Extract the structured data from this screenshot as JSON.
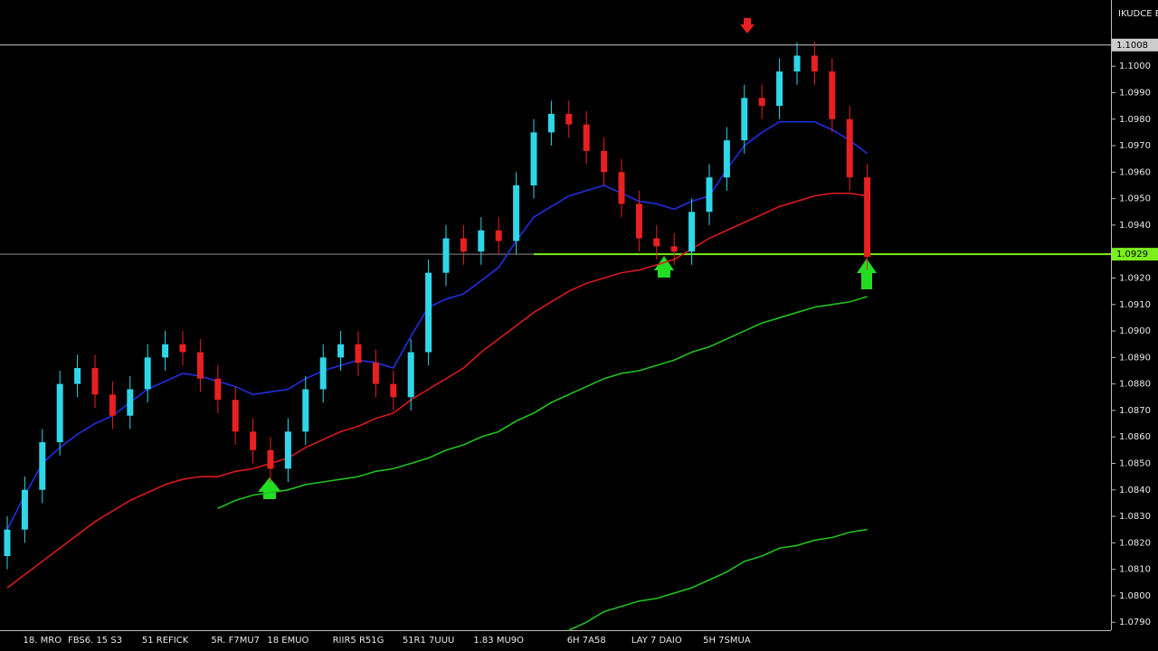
{
  "chart_data": {
    "type": "candlestick",
    "symbol": "IKUDCE E",
    "categories": [
      null,
      null,
      "18. MRO",
      null,
      null,
      "FBS6. 15 S3",
      null,
      null,
      null,
      "51 REFICK",
      null,
      null,
      null,
      "5R. F7MU7",
      null,
      null,
      "18 EMUO",
      null,
      null,
      null,
      "RIIR5 R51G",
      null,
      null,
      null,
      "51R1 7UUU",
      null,
      null,
      null,
      "1.83 MU9O",
      null,
      null,
      null,
      null,
      "6H 7A58",
      null,
      null,
      null,
      "LAY 7 DAIO",
      null,
      null,
      null,
      "5H 7SMUA",
      null,
      null,
      null,
      null,
      null,
      null,
      null,
      null
    ],
    "open": [
      1.0815,
      1.0825,
      1.084,
      1.0858,
      1.088,
      1.0886,
      1.0876,
      1.0868,
      1.0878,
      1.089,
      1.0895,
      1.0892,
      1.0882,
      1.0874,
      1.0862,
      1.0855,
      1.0848,
      1.0862,
      1.0878,
      1.089,
      1.0895,
      1.0888,
      1.088,
      1.0875,
      1.0892,
      1.0922,
      1.0935,
      1.093,
      1.0938,
      1.0934,
      1.0955,
      1.0975,
      1.0982,
      1.0978,
      1.0968,
      1.096,
      1.0948,
      1.0935,
      1.0932,
      1.093,
      1.0945,
      1.0958,
      1.0972,
      1.0988,
      1.0985,
      1.0998,
      1.1004,
      1.0998,
      1.098,
      1.0958
    ],
    "high": [
      1.083,
      1.0845,
      1.0863,
      1.0885,
      1.0891,
      1.0891,
      1.0881,
      1.0883,
      1.0895,
      1.09,
      1.09,
      1.0897,
      1.0887,
      1.0879,
      1.0867,
      1.086,
      1.0867,
      1.0883,
      1.0895,
      1.09,
      1.09,
      1.0893,
      1.0885,
      1.0897,
      1.0927,
      1.094,
      1.094,
      1.0943,
      1.0943,
      1.096,
      1.098,
      1.0987,
      1.0987,
      1.0983,
      1.0973,
      1.0965,
      1.0953,
      1.094,
      1.0937,
      1.095,
      1.0963,
      1.0977,
      1.0993,
      1.0993,
      1.1003,
      1.1009,
      1.1009,
      1.1003,
      1.0985,
      1.0963
    ],
    "low": [
      1.081,
      1.082,
      1.0835,
      1.0853,
      1.0875,
      1.0871,
      1.0863,
      1.0863,
      1.0873,
      1.0885,
      1.0887,
      1.0877,
      1.0869,
      1.0857,
      1.085,
      1.0843,
      1.0843,
      1.0857,
      1.0873,
      1.0885,
      1.0883,
      1.0875,
      1.087,
      1.087,
      1.0887,
      1.0917,
      1.0925,
      1.0925,
      1.0929,
      1.0929,
      1.095,
      1.097,
      1.0973,
      1.0963,
      1.0955,
      1.0943,
      1.093,
      1.0927,
      1.0925,
      1.0925,
      1.094,
      1.0953,
      1.0967,
      1.098,
      1.098,
      1.0993,
      1.0993,
      1.0975,
      1.0953,
      1.0923
    ],
    "close": [
      1.0825,
      1.084,
      1.0858,
      1.088,
      1.0886,
      1.0876,
      1.0868,
      1.0878,
      1.089,
      1.0895,
      1.0892,
      1.0882,
      1.0874,
      1.0862,
      1.0855,
      1.0848,
      1.0862,
      1.0878,
      1.089,
      1.0895,
      1.0888,
      1.088,
      1.0875,
      1.0892,
      1.0922,
      1.0935,
      1.093,
      1.0938,
      1.0934,
      1.0955,
      1.0975,
      1.0982,
      1.0978,
      1.0968,
      1.096,
      1.0948,
      1.0935,
      1.0932,
      1.093,
      1.0945,
      1.0958,
      1.0972,
      1.0988,
      1.0985,
      1.0998,
      1.1004,
      1.0998,
      1.098,
      1.0958,
      1.0928
    ],
    "up_color": "#2fd6e8",
    "down_color": "#e82020",
    "series": [
      {
        "color": "#1f2fe0",
        "values": [
          1.0825,
          1.0838,
          1.085,
          1.0856,
          1.0861,
          1.0865,
          1.0868,
          1.0873,
          1.0878,
          1.0881,
          1.0884,
          1.0883,
          1.0881,
          1.0879,
          1.0876,
          1.0877,
          1.0878,
          1.0882,
          1.0885,
          1.0887,
          1.0889,
          1.0888,
          1.0886,
          1.0898,
          1.0909,
          1.0912,
          1.0914,
          1.0919,
          1.0924,
          1.0934,
          1.0943,
          1.0947,
          1.0951,
          1.0953,
          1.0955,
          1.0952,
          1.0949,
          1.0948,
          1.0946,
          1.0949,
          1.0951,
          1.0961,
          1.097,
          1.0975,
          1.0979,
          1.0979,
          1.0979,
          1.0976,
          1.0972,
          1.0967
        ]
      },
      {
        "color": "#d81a1a",
        "values": [
          1.0803,
          1.0808,
          1.0813,
          1.0818,
          1.0823,
          1.0828,
          1.0832,
          1.0836,
          1.0839,
          1.0842,
          1.0844,
          1.0845,
          1.0845,
          1.0847,
          1.0848,
          1.085,
          1.0852,
          1.0856,
          1.0859,
          1.0862,
          1.0864,
          1.0867,
          1.0869,
          1.0874,
          1.0878,
          1.0882,
          1.0886,
          1.0892,
          1.0897,
          1.0902,
          1.0907,
          1.0911,
          1.0915,
          1.0918,
          1.092,
          1.0922,
          1.0923,
          1.0925,
          1.0927,
          1.0931,
          1.0935,
          1.0938,
          1.0941,
          1.0944,
          1.0947,
          1.0949,
          1.0951,
          1.0952,
          1.0952,
          1.0951
        ]
      },
      {
        "color": "#22c01e",
        "values": [
          null,
          null,
          null,
          null,
          null,
          null,
          null,
          null,
          null,
          null,
          null,
          null,
          1.0833,
          1.0836,
          1.0838,
          1.0839,
          1.084,
          1.0842,
          1.0843,
          1.0844,
          1.0845,
          1.0847,
          1.0848,
          1.085,
          1.0852,
          1.0855,
          1.0857,
          1.086,
          1.0862,
          1.0866,
          1.0869,
          1.0873,
          1.0876,
          1.0879,
          1.0882,
          1.0884,
          1.0885,
          1.0887,
          1.0889,
          1.0892,
          1.0894,
          1.0897,
          1.09,
          1.0903,
          1.0905,
          1.0907,
          1.0909,
          1.091,
          1.0911,
          1.0913
        ]
      },
      {
        "color": "#22c01e",
        "values": [
          null,
          null,
          null,
          null,
          null,
          null,
          null,
          null,
          null,
          null,
          null,
          null,
          null,
          null,
          null,
          null,
          null,
          null,
          null,
          null,
          null,
          null,
          null,
          null,
          null,
          null,
          null,
          null,
          null,
          null,
          null,
          null,
          1.0787,
          1.079,
          1.0794,
          1.0796,
          1.0798,
          1.0799,
          1.0801,
          1.0803,
          1.0806,
          1.0809,
          1.0813,
          1.0815,
          1.0818,
          1.0819,
          1.0821,
          1.0822,
          1.0824,
          1.0825
        ]
      }
    ],
    "levels": [
      {
        "value": 1.1008,
        "color": "#cccccc"
      },
      {
        "value": 1.0929,
        "color": "#8a8a8a"
      },
      {
        "value": 1.0929,
        "color": "#7cf01a"
      }
    ],
    "ylim": [
      1.0787,
      1.1025
    ],
    "yticks": [
      {
        "value": 1.1,
        "label": "1.1000"
      },
      {
        "value": 1.099,
        "label": "1.0990"
      },
      {
        "value": 1.098,
        "label": "1.0980"
      },
      {
        "value": 1.097,
        "label": "1.0970"
      },
      {
        "value": 1.096,
        "label": "1.0960"
      },
      {
        "value": 1.095,
        "label": "1.0950"
      },
      {
        "value": 1.094,
        "label": "1.0940"
      },
      {
        "value": 1.093,
        "label": "1.0930"
      },
      {
        "value": 1.092,
        "label": "1.0920"
      },
      {
        "value": 1.091,
        "label": "1.0910"
      },
      {
        "value": 1.09,
        "label": "1.0900"
      },
      {
        "value": 1.089,
        "label": "1.0890"
      },
      {
        "value": 1.088,
        "label": "1.0880"
      },
      {
        "value": 1.087,
        "label": "1.0870"
      },
      {
        "value": 1.086,
        "label": "1.0860"
      },
      {
        "value": 1.085,
        "label": "1.0850"
      },
      {
        "value": 1.084,
        "label": "1.0840"
      },
      {
        "value": 1.083,
        "label": "1.0830"
      },
      {
        "value": 1.082,
        "label": "1.0820"
      },
      {
        "value": 1.081,
        "label": "1.0810"
      },
      {
        "value": 1.08,
        "label": "1.0800"
      },
      {
        "value": 1.079,
        "label": "1.0790"
      }
    ]
  }
}
